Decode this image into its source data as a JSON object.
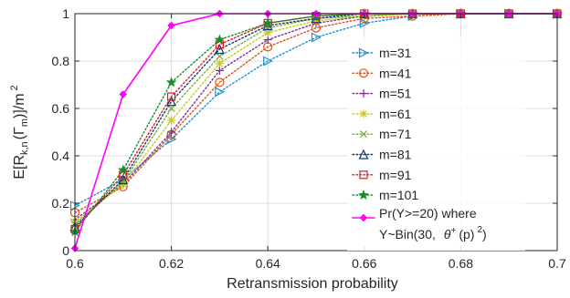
{
  "chart_data": {
    "type": "line",
    "title": "",
    "xlabel": "Retransmission probability",
    "ylabel": {
      "main": "E[R",
      "sub1": "k,n",
      "paren": "(Γ",
      "sub2": "m",
      "tail": ")]/m",
      "sup": "2"
    },
    "xlim": [
      0.6,
      0.7
    ],
    "ylim": [
      0,
      1
    ],
    "x_ticks": [
      "0.6",
      "0.62",
      "0.64",
      "0.66",
      "0.68",
      "0.7"
    ],
    "y_ticks": [
      "0",
      "0.2",
      "0.4",
      "0.6",
      "0.8",
      "1"
    ],
    "grid": true,
    "legend_position": "right",
    "x": [
      0.6,
      0.61,
      0.62,
      0.63,
      0.64,
      0.65,
      0.66,
      0.67,
      0.68,
      0.69,
      0.7
    ],
    "series": [
      {
        "name": "m=31",
        "color": "#1f8fd0",
        "marker": "triangle-right",
        "values": [
          0.19,
          0.3,
          0.47,
          0.67,
          0.8,
          0.9,
          0.96,
          0.99,
          1.0,
          1.0,
          1.0
        ]
      },
      {
        "name": "m=41",
        "color": "#d95319",
        "marker": "circle",
        "values": [
          0.16,
          0.27,
          0.49,
          0.71,
          0.86,
          0.94,
          0.98,
          0.99,
          1.0,
          1.0,
          1.0
        ]
      },
      {
        "name": "m=51",
        "color": "#7e2f8e",
        "marker": "plus",
        "values": [
          0.13,
          0.28,
          0.5,
          0.76,
          0.89,
          0.96,
          0.99,
          1.0,
          1.0,
          1.0,
          1.0
        ]
      },
      {
        "name": "m=61",
        "color": "#c8c81a",
        "marker": "asterisk",
        "values": [
          0.12,
          0.28,
          0.55,
          0.79,
          0.92,
          0.97,
          0.99,
          1.0,
          1.0,
          1.0,
          1.0
        ]
      },
      {
        "name": "m=71",
        "color": "#77ac30",
        "marker": "x",
        "values": [
          0.11,
          0.29,
          0.6,
          0.82,
          0.94,
          0.98,
          0.99,
          1.0,
          1.0,
          1.0,
          1.0
        ]
      },
      {
        "name": "m=81",
        "color": "#0e3a73",
        "marker": "triangle-up",
        "values": [
          0.1,
          0.3,
          0.63,
          0.85,
          0.95,
          0.98,
          1.0,
          1.0,
          1.0,
          1.0,
          1.0
        ]
      },
      {
        "name": "m=91",
        "color": "#e31a1c",
        "marker": "square",
        "values": [
          0.09,
          0.32,
          0.65,
          0.87,
          0.96,
          0.99,
          1.0,
          1.0,
          1.0,
          1.0,
          1.0
        ]
      },
      {
        "name": "m=101",
        "color": "#1a8a2a",
        "marker": "star",
        "values": [
          0.08,
          0.34,
          0.71,
          0.89,
          0.96,
          0.99,
          1.0,
          1.0,
          1.0,
          1.0,
          1.0
        ]
      },
      {
        "name": "Pr(Y>=20) where Y~Bin(30, θ+(p)2)",
        "color": "#ff00ff",
        "marker": "diamond",
        "values": [
          0.01,
          0.66,
          0.95,
          1.0,
          1.0,
          1.0,
          1.0,
          1.0,
          1.0,
          1.0,
          1.0
        ]
      }
    ],
    "legend_last": {
      "line1": "Pr(Y>=20) where",
      "line2_a": "Y~Bin(30,",
      "line2_theta": "θ",
      "line2_plus": "+",
      "line2_b": "(p)",
      "line2_sq": "2",
      "line2_c": ")"
    }
  }
}
